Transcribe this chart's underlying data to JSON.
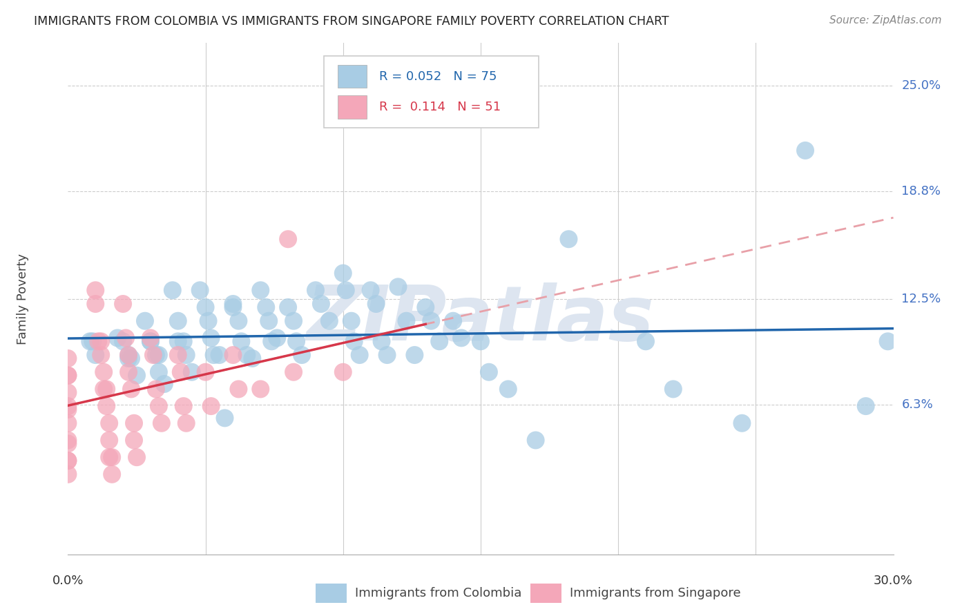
{
  "title": "IMMIGRANTS FROM COLOMBIA VS IMMIGRANTS FROM SINGAPORE FAMILY POVERTY CORRELATION CHART",
  "source": "Source: ZipAtlas.com",
  "ylabel": "Family Poverty",
  "y_ticks": [
    0.063,
    0.125,
    0.188,
    0.25
  ],
  "y_tick_labels": [
    "6.3%",
    "12.5%",
    "18.8%",
    "25.0%"
  ],
  "x_min": 0.0,
  "x_max": 0.3,
  "y_min": -0.025,
  "y_max": 0.275,
  "colombia_R": 0.052,
  "colombia_N": 75,
  "singapore_R": 0.114,
  "singapore_N": 51,
  "colombia_color": "#a8cce4",
  "singapore_color": "#f4a7b9",
  "colombia_line_color": "#2166ac",
  "singapore_line_color": "#d6374a",
  "trendline_dashed_color": "#e8a0a8",
  "watermark_text": "ZIPatlas",
  "watermark_color": "#dde5f0",
  "colombia_x": [
    0.008,
    0.009,
    0.01,
    0.018,
    0.02,
    0.022,
    0.022,
    0.023,
    0.025,
    0.028,
    0.03,
    0.03,
    0.032,
    0.033,
    0.033,
    0.035,
    0.038,
    0.04,
    0.04,
    0.042,
    0.043,
    0.045,
    0.048,
    0.05,
    0.051,
    0.052,
    0.053,
    0.055,
    0.057,
    0.06,
    0.06,
    0.062,
    0.063,
    0.065,
    0.067,
    0.07,
    0.072,
    0.073,
    0.074,
    0.076,
    0.08,
    0.082,
    0.083,
    0.085,
    0.09,
    0.092,
    0.095,
    0.1,
    0.101,
    0.103,
    0.104,
    0.106,
    0.11,
    0.112,
    0.114,
    0.116,
    0.12,
    0.123,
    0.126,
    0.13,
    0.132,
    0.135,
    0.14,
    0.143,
    0.15,
    0.153,
    0.16,
    0.17,
    0.182,
    0.21,
    0.22,
    0.245,
    0.268,
    0.29,
    0.298
  ],
  "colombia_y": [
    0.1,
    0.1,
    0.092,
    0.102,
    0.1,
    0.092,
    0.09,
    0.09,
    0.08,
    0.112,
    0.1,
    0.1,
    0.092,
    0.092,
    0.082,
    0.075,
    0.13,
    0.112,
    0.1,
    0.1,
    0.092,
    0.082,
    0.13,
    0.12,
    0.112,
    0.102,
    0.092,
    0.092,
    0.055,
    0.12,
    0.122,
    0.112,
    0.1,
    0.092,
    0.09,
    0.13,
    0.12,
    0.112,
    0.1,
    0.102,
    0.12,
    0.112,
    0.1,
    0.092,
    0.13,
    0.122,
    0.112,
    0.14,
    0.13,
    0.112,
    0.1,
    0.092,
    0.13,
    0.122,
    0.1,
    0.092,
    0.132,
    0.112,
    0.092,
    0.12,
    0.112,
    0.1,
    0.112,
    0.102,
    0.1,
    0.082,
    0.072,
    0.042,
    0.16,
    0.1,
    0.072,
    0.052,
    0.212,
    0.062,
    0.1
  ],
  "singapore_x": [
    0.0,
    0.0,
    0.0,
    0.0,
    0.0,
    0.0,
    0.0,
    0.0,
    0.0,
    0.0,
    0.0,
    0.0,
    0.01,
    0.01,
    0.011,
    0.012,
    0.012,
    0.013,
    0.013,
    0.014,
    0.014,
    0.015,
    0.015,
    0.015,
    0.016,
    0.016,
    0.02,
    0.021,
    0.022,
    0.022,
    0.023,
    0.024,
    0.024,
    0.025,
    0.03,
    0.031,
    0.032,
    0.033,
    0.034,
    0.04,
    0.041,
    0.042,
    0.043,
    0.05,
    0.052,
    0.06,
    0.062,
    0.07,
    0.08,
    0.082,
    0.1
  ],
  "singapore_y": [
    0.09,
    0.08,
    0.08,
    0.07,
    0.062,
    0.06,
    0.052,
    0.042,
    0.04,
    0.03,
    0.03,
    0.022,
    0.13,
    0.122,
    0.1,
    0.1,
    0.092,
    0.082,
    0.072,
    0.072,
    0.062,
    0.052,
    0.042,
    0.032,
    0.032,
    0.022,
    0.122,
    0.102,
    0.092,
    0.082,
    0.072,
    0.052,
    0.042,
    0.032,
    0.102,
    0.092,
    0.072,
    0.062,
    0.052,
    0.092,
    0.082,
    0.062,
    0.052,
    0.082,
    0.062,
    0.092,
    0.072,
    0.072,
    0.16,
    0.082,
    0.082
  ]
}
